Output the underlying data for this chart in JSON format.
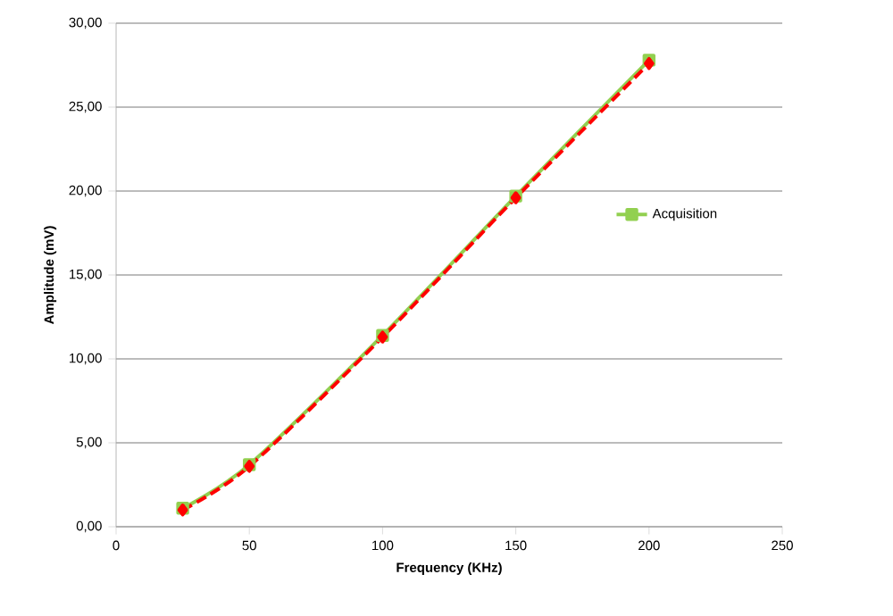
{
  "chart_data": {
    "type": "line",
    "xlabel": "Frequency (KHz)",
    "ylabel": "Amplitude (mV)",
    "x": [
      25,
      50,
      100,
      150,
      200
    ],
    "series": [
      {
        "name": "Acquisition",
        "color": "#92d050",
        "values": [
          1.1,
          3.7,
          11.4,
          19.7,
          27.8
        ],
        "marker": "square",
        "line_style": "solid"
      },
      {
        "color": "#ff0000",
        "values": [
          1.0,
          3.6,
          11.3,
          19.6,
          27.6
        ],
        "marker": "diamond",
        "line_style": "dashed"
      }
    ],
    "xlim": [
      0,
      250
    ],
    "xticks": [
      0,
      50,
      100,
      150,
      200,
      250
    ],
    "ylim": [
      0,
      30
    ],
    "yticks": [
      {
        "value": 0,
        "label": "0,00"
      },
      {
        "value": 5,
        "label": "5,00"
      },
      {
        "value": 10,
        "label": "10,00"
      },
      {
        "value": 15,
        "label": "15,00"
      },
      {
        "value": 20,
        "label": "20,00"
      },
      {
        "value": 25,
        "label": "25,00"
      },
      {
        "value": 30,
        "label": "30,00"
      }
    ],
    "grid": "y",
    "legend": "right"
  }
}
